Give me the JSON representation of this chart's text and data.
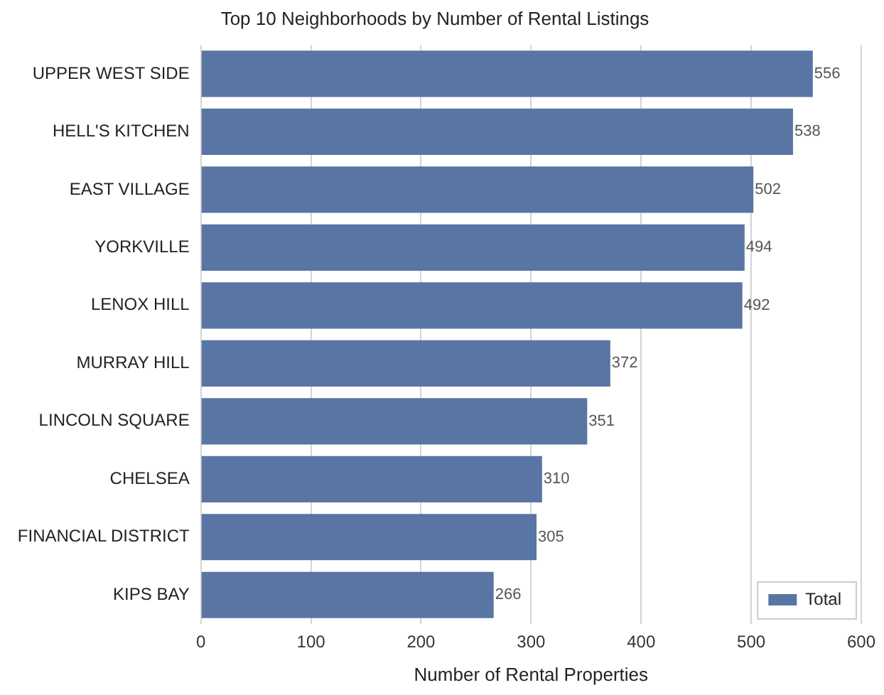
{
  "chart_data": {
    "type": "bar",
    "orientation": "horizontal",
    "title": "Top 10 Neighborhoods by Number of Rental Listings",
    "xlabel": "Number of Rental Properties",
    "categories": [
      "UPPER WEST SIDE",
      "HELL'S KITCHEN",
      "EAST VILLAGE",
      "YORKVILLE",
      "LENOX HILL",
      "MURRAY HILL",
      "LINCOLN SQUARE",
      "CHELSEA",
      "FINANCIAL DISTRICT",
      "KIPS BAY"
    ],
    "series": [
      {
        "name": "Total",
        "color": "#5975a4",
        "values": [
          556,
          538,
          502,
          494,
          492,
          372,
          351,
          310,
          305,
          266
        ]
      }
    ],
    "xlim": [
      0,
      600
    ],
    "xticks": [
      0,
      100,
      200,
      300,
      400,
      500,
      600
    ],
    "grid": "x",
    "legend": "bottom right",
    "data_labels": true
  }
}
